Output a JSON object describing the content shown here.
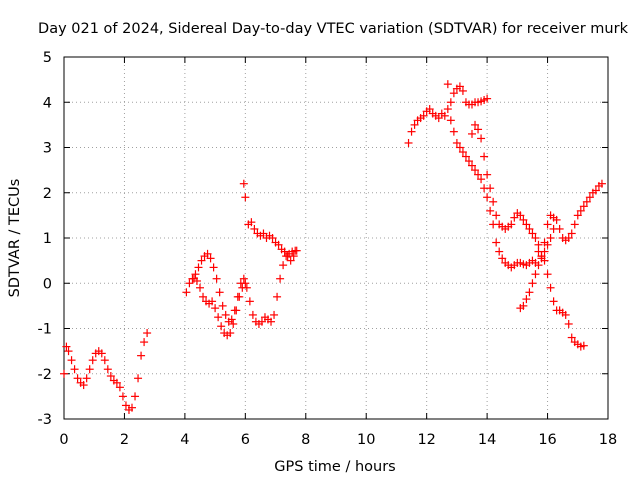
{
  "chart_data": {
    "type": "scatter",
    "title": "Day 021 of 2024, Sidereal Day-to-day VTEC variation (SDTVAR) for receiver murk",
    "xlabel": "GPS time / hours",
    "ylabel": "SDTVAR / TECUs",
    "xlim": [
      0,
      18
    ],
    "ylim": [
      -3,
      5
    ],
    "xticks": [
      0,
      2,
      4,
      6,
      8,
      10,
      12,
      14,
      16,
      18
    ],
    "yticks": [
      -3,
      -2,
      -1,
      0,
      1,
      2,
      3,
      4,
      5
    ],
    "grid": true,
    "marker": "+",
    "color": "#ff0000",
    "series": [
      {
        "name": "SDTVAR",
        "x": [
          0.0,
          0.08,
          0.15,
          0.25,
          0.35,
          0.45,
          0.55,
          0.65,
          0.75,
          0.85,
          0.95,
          1.05,
          1.15,
          1.25,
          1.35,
          1.45,
          1.55,
          1.65,
          1.75,
          1.85,
          1.95,
          2.05,
          2.15,
          2.25,
          2.35,
          2.45,
          2.55,
          2.65,
          2.75,
          4.05,
          4.15,
          4.25,
          4.35,
          4.45,
          4.55,
          4.65,
          4.75,
          4.85,
          4.95,
          5.05,
          5.15,
          5.25,
          5.35,
          5.45,
          5.55,
          5.65,
          5.75,
          5.85,
          5.95,
          6.05,
          6.15,
          6.25,
          6.35,
          6.45,
          6.55,
          6.65,
          6.75,
          6.85,
          6.95,
          7.05,
          7.15,
          7.25,
          7.35,
          7.45,
          7.55,
          7.65,
          4.3,
          4.4,
          4.5,
          4.6,
          4.7,
          4.8,
          4.9,
          5.0,
          5.1,
          5.2,
          5.3,
          5.4,
          5.5,
          5.6,
          5.7,
          5.8,
          5.9,
          6.0,
          5.95,
          6.0,
          6.1,
          6.2,
          6.3,
          6.4,
          6.5,
          6.6,
          6.7,
          6.8,
          6.9,
          7.0,
          7.1,
          7.2,
          7.3,
          7.4,
          7.5,
          7.6,
          7.7,
          11.4,
          11.5,
          11.6,
          11.7,
          11.8,
          11.9,
          12.0,
          12.1,
          12.2,
          12.3,
          12.4,
          12.5,
          12.6,
          12.7,
          12.8,
          12.9,
          13.0,
          13.1,
          13.2,
          13.3,
          13.4,
          13.5,
          13.6,
          13.7,
          13.8,
          13.9,
          14.0,
          14.1,
          14.2,
          14.3,
          14.4,
          14.5,
          14.6,
          14.7,
          14.8,
          14.9,
          15.0,
          15.1,
          15.2,
          15.3,
          15.4,
          15.5,
          15.6,
          15.7,
          15.8,
          15.9,
          16.0,
          16.1,
          16.2,
          16.3,
          16.4,
          16.5,
          16.6,
          16.7,
          16.8,
          16.9,
          17.0,
          17.1,
          17.2,
          12.7,
          12.8,
          12.9,
          13.0,
          13.1,
          13.2,
          13.3,
          13.4,
          13.5,
          13.6,
          13.7,
          13.8,
          13.9,
          14.0,
          13.5,
          13.6,
          13.7,
          13.8,
          13.9,
          14.0,
          14.1,
          14.2,
          14.3,
          14.4,
          14.5,
          14.6,
          14.7,
          14.8,
          14.9,
          15.0,
          15.1,
          15.2,
          15.3,
          15.4,
          15.5,
          15.6,
          15.7,
          15.8,
          15.9,
          16.0,
          16.1,
          16.2,
          16.3,
          16.4,
          16.5,
          16.6,
          16.7,
          16.8,
          16.9,
          17.0,
          17.1,
          17.2,
          17.3,
          17.4,
          17.5,
          17.6,
          17.7,
          17.8,
          15.1,
          15.2,
          15.3,
          15.4,
          15.5,
          15.6,
          15.7,
          15.8,
          15.9,
          16.0,
          16.1,
          16.2
        ],
        "y": [
          -2.0,
          -1.4,
          -1.5,
          -1.7,
          -1.9,
          -2.1,
          -2.2,
          -2.25,
          -2.1,
          -1.9,
          -1.7,
          -1.55,
          -1.5,
          -1.55,
          -1.7,
          -1.9,
          -2.05,
          -2.15,
          -2.2,
          -2.3,
          -2.5,
          -2.7,
          -2.8,
          -2.75,
          -2.5,
          -2.1,
          -1.6,
          -1.3,
          -1.1,
          -0.2,
          0.0,
          0.1,
          0.2,
          0.35,
          0.5,
          0.6,
          0.65,
          0.55,
          0.35,
          0.1,
          -0.2,
          -0.5,
          -0.7,
          -0.85,
          -0.8,
          -0.6,
          -0.3,
          0.0,
          0.1,
          -0.1,
          -0.4,
          -0.7,
          -0.85,
          -0.9,
          -0.85,
          -0.75,
          -0.8,
          -0.85,
          -0.7,
          -0.3,
          0.1,
          0.4,
          0.6,
          0.65,
          0.7,
          0.72,
          0.1,
          0.05,
          -0.1,
          -0.3,
          -0.4,
          -0.45,
          -0.4,
          -0.55,
          -0.75,
          -0.95,
          -1.1,
          -1.15,
          -1.1,
          -0.9,
          -0.6,
          -0.3,
          -0.1,
          0.0,
          2.2,
          1.9,
          1.3,
          1.35,
          1.2,
          1.1,
          1.05,
          1.1,
          1.0,
          1.05,
          1.0,
          0.9,
          0.85,
          0.75,
          0.7,
          0.6,
          0.5,
          0.6,
          0.72,
          3.1,
          3.35,
          3.5,
          3.6,
          3.65,
          3.7,
          3.8,
          3.85,
          3.75,
          3.7,
          3.65,
          3.75,
          3.7,
          3.85,
          3.6,
          3.35,
          3.1,
          3.0,
          2.9,
          2.8,
          2.7,
          2.6,
          2.5,
          2.4,
          2.3,
          2.1,
          1.9,
          1.6,
          1.3,
          0.9,
          0.7,
          0.55,
          0.45,
          0.4,
          0.35,
          0.4,
          0.45,
          0.45,
          0.42,
          0.4,
          0.45,
          0.5,
          0.45,
          0.7,
          0.6,
          0.5,
          0.2,
          -0.1,
          -0.4,
          -0.6,
          -0.6,
          -0.65,
          -0.7,
          -0.9,
          -1.2,
          -1.3,
          -1.35,
          -1.4,
          -1.38,
          4.4,
          4.0,
          4.2,
          4.3,
          4.35,
          4.25,
          4.0,
          3.95,
          3.95,
          4.0,
          4.0,
          4.02,
          4.05,
          4.08,
          3.3,
          3.5,
          3.4,
          3.2,
          2.8,
          2.4,
          2.1,
          1.8,
          1.5,
          1.3,
          1.25,
          1.2,
          1.25,
          1.3,
          1.45,
          1.55,
          1.5,
          1.4,
          1.3,
          1.2,
          1.1,
          1.0,
          0.85,
          0.6,
          0.9,
          1.3,
          1.5,
          1.45,
          1.4,
          1.2,
          1.0,
          0.95,
          1.0,
          1.1,
          1.3,
          1.5,
          1.6,
          1.7,
          1.8,
          1.9,
          2.0,
          2.05,
          2.15,
          2.2,
          -0.55,
          -0.5,
          -0.35,
          -0.2,
          0.0,
          0.2,
          0.4,
          0.55,
          0.7,
          0.85,
          1.0,
          1.2
        ]
      }
    ]
  }
}
